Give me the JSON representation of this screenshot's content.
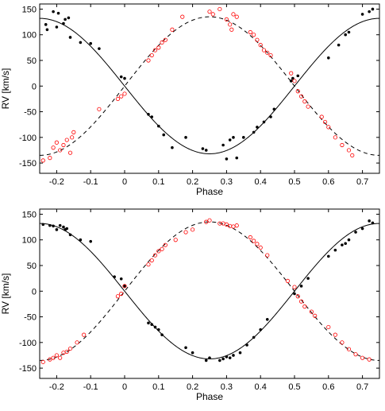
{
  "chart_data": [
    {
      "type": "scatter",
      "xlabel": "Phase",
      "ylabel": "RV [km/s]",
      "xlim": [
        -0.25,
        0.75
      ],
      "ylim": [
        -170,
        160
      ],
      "xticks": [
        -0.2,
        -0.1,
        0,
        0.1,
        0.2,
        0.3,
        0.4,
        0.5,
        0.6,
        0.7
      ],
      "xtick_labels": [
        "-0.2",
        "-0.1",
        "0",
        "0.1",
        "0.2",
        "0.3",
        "0.4",
        "0.5",
        "0.6",
        "0.7"
      ],
      "yticks": [
        -150,
        -100,
        -50,
        0,
        50,
        100,
        150
      ],
      "ytick_labels": [
        "-150",
        "-100",
        "-50",
        "0",
        "50",
        "100",
        "150"
      ],
      "series": [
        {
          "marker": "filled-dot",
          "color": "#000000",
          "x": [
            -0.232,
            -0.228,
            -0.21,
            -0.2,
            -0.195,
            -0.18,
            -0.175,
            -0.165,
            -0.16,
            -0.13,
            -0.1,
            -0.075,
            -0.01,
            0.0,
            0.07,
            0.08,
            0.1,
            0.115,
            0.14,
            0.18,
            0.23,
            0.24,
            0.29,
            0.3,
            0.31,
            0.32,
            0.33,
            0.35,
            0.38,
            0.39,
            0.41,
            0.43,
            0.44,
            0.49,
            0.495,
            0.51,
            0.6,
            0.63,
            0.65,
            0.66,
            0.7,
            0.72,
            0.73
          ],
          "y": [
            120,
            110,
            145,
            115,
            142,
            122,
            130,
            133,
            95,
            85,
            83,
            73,
            18,
            15,
            -55,
            -60,
            -78,
            -95,
            -120,
            -100,
            -122,
            -125,
            -115,
            -142,
            -105,
            -100,
            -140,
            -100,
            -90,
            -80,
            -70,
            -60,
            -45,
            10,
            15,
            20,
            55,
            80,
            100,
            105,
            140,
            145,
            150
          ]
        },
        {
          "marker": "open-circle",
          "color": "#ff0000",
          "x": [
            -0.24,
            -0.22,
            -0.21,
            -0.2,
            -0.19,
            -0.18,
            -0.17,
            -0.16,
            -0.155,
            -0.15,
            -0.075,
            -0.02,
            -0.01,
            0.0,
            0.07,
            0.08,
            0.09,
            0.1,
            0.11,
            0.12,
            0.14,
            0.17,
            0.25,
            0.26,
            0.28,
            0.3,
            0.31,
            0.315,
            0.32,
            0.33,
            0.37,
            0.38,
            0.39,
            0.4,
            0.41,
            0.42,
            0.43,
            0.49,
            0.5,
            0.51,
            0.52,
            0.53,
            0.54,
            0.58,
            0.59,
            0.6,
            0.62,
            0.64,
            0.66,
            0.67
          ],
          "y": [
            -145,
            -140,
            -120,
            -110,
            -125,
            -115,
            -105,
            -130,
            -100,
            -90,
            -45,
            -25,
            -20,
            -15,
            50,
            60,
            70,
            75,
            85,
            90,
            110,
            135,
            145,
            140,
            150,
            130,
            120,
            110,
            140,
            135,
            105,
            100,
            90,
            80,
            70,
            65,
            60,
            25,
            10,
            -10,
            -20,
            -30,
            -40,
            -60,
            -70,
            -80,
            -100,
            -115,
            -125,
            -135
          ]
        }
      ],
      "model_curves": [
        {
          "style": "solid",
          "color": "#000000",
          "amplitude": 132,
          "phase_zero": 0.0,
          "sign": -1
        },
        {
          "style": "dashed",
          "color": "#000000",
          "amplitude": 135,
          "phase_zero": 0.0,
          "sign": 1
        }
      ]
    },
    {
      "type": "scatter",
      "xlabel": "Phase",
      "ylabel": "RV [km/s]",
      "xlim": [
        -0.25,
        0.75
      ],
      "ylim": [
        -170,
        160
      ],
      "xticks": [
        -0.2,
        -0.1,
        0,
        0.1,
        0.2,
        0.3,
        0.4,
        0.5,
        0.6,
        0.7
      ],
      "xtick_labels": [
        "-0.2",
        "-0.1",
        "0",
        "0.1",
        "0.2",
        "0.3",
        "0.4",
        "0.5",
        "0.6",
        "0.7"
      ],
      "yticks": [
        -150,
        -100,
        -50,
        0,
        50,
        100,
        150
      ],
      "ytick_labels": [
        "-150",
        "-100",
        "-50",
        "0",
        "50",
        "100",
        "150"
      ],
      "series": [
        {
          "marker": "filled-dot",
          "color": "#000000",
          "x": [
            -0.24,
            -0.22,
            -0.21,
            -0.2,
            -0.19,
            -0.18,
            -0.175,
            -0.17,
            -0.16,
            -0.13,
            -0.1,
            -0.03,
            -0.01,
            0.0,
            0.07,
            0.08,
            0.09,
            0.1,
            0.11,
            0.18,
            0.2,
            0.24,
            0.25,
            0.28,
            0.29,
            0.3,
            0.31,
            0.32,
            0.34,
            0.36,
            0.38,
            0.4,
            0.42,
            0.5,
            0.52,
            0.54,
            0.6,
            0.62,
            0.64,
            0.65,
            0.66,
            0.68,
            0.7,
            0.72,
            0.73
          ],
          "y": [
            130,
            128,
            127,
            120,
            128,
            125,
            120,
            122,
            110,
            100,
            97,
            28,
            24,
            10,
            -62,
            -65,
            -70,
            -75,
            -85,
            -110,
            -120,
            -135,
            -130,
            -135,
            -132,
            -128,
            -130,
            -125,
            -120,
            -105,
            -90,
            -75,
            -55,
            -5,
            10,
            25,
            68,
            80,
            90,
            93,
            100,
            115,
            122,
            137,
            133
          ]
        },
        {
          "marker": "open-circle",
          "color": "#ff0000",
          "x": [
            -0.24,
            -0.22,
            -0.21,
            -0.2,
            -0.19,
            -0.18,
            -0.17,
            -0.16,
            -0.14,
            -0.12,
            -0.02,
            -0.01,
            0.0,
            0.07,
            0.08,
            0.09,
            0.1,
            0.11,
            0.12,
            0.15,
            0.18,
            0.2,
            0.24,
            0.25,
            0.28,
            0.29,
            0.3,
            0.31,
            0.32,
            0.33,
            0.37,
            0.38,
            0.39,
            0.4,
            0.42,
            0.48,
            0.5,
            0.51,
            0.52,
            0.53,
            0.55,
            0.56,
            0.6,
            0.62,
            0.64,
            0.66,
            0.68,
            0.7,
            0.72
          ],
          "y": [
            -138,
            -133,
            -130,
            -125,
            -130,
            -120,
            -118,
            -112,
            -100,
            -85,
            -10,
            -5,
            10,
            52,
            60,
            70,
            78,
            82,
            90,
            100,
            115,
            120,
            135,
            138,
            132,
            132,
            130,
            127,
            126,
            128,
            105,
            98,
            92,
            85,
            70,
            20,
            8,
            -10,
            -20,
            -30,
            -40,
            -48,
            -70,
            -85,
            -100,
            -113,
            -123,
            -130,
            -133
          ]
        }
      ],
      "model_curves": [
        {
          "style": "solid",
          "color": "#000000",
          "amplitude": 132,
          "phase_zero": 0.0,
          "sign": -1
        },
        {
          "style": "dashed",
          "color": "#000000",
          "amplitude": 135,
          "phase_zero": 0.0,
          "sign": 1
        }
      ]
    }
  ]
}
